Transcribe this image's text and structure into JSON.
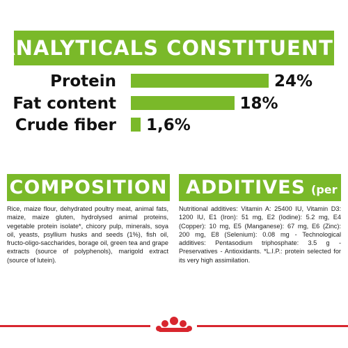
{
  "colors": {
    "accent": "#7ab929",
    "brand_red": "#d8262e",
    "text": "#111111"
  },
  "banner": {
    "title": "ANALYTICALS CONSTITUENTS"
  },
  "chart_data": {
    "type": "bar",
    "orientation": "horizontal",
    "categories": [
      "Protein",
      "Fat content",
      "Crude fiber"
    ],
    "values": [
      24,
      18,
      1.6
    ],
    "value_labels": [
      "24%",
      "18%",
      "1,6%"
    ],
    "unit": "%",
    "xlim": [
      0,
      24
    ],
    "grid": false,
    "legend": "none"
  },
  "composition": {
    "title": "COMPOSITION",
    "text": "Rice, maize flour, dehydrated poultry meat, animal fats, maize, maize gluten, hydrolysed animal proteins, vegetable protein isolate*, chicory pulp, minerals, soya oil, yeasts, psyllium husks and seeds (1%), fish oil, fructo-oligo-saccharides, borage oil, green tea and grape extracts (source of polyphenols), marigold extract (source of lutein)."
  },
  "additives": {
    "title": "ADDITIVES",
    "subtitle": "(per kg)",
    "text": "Nutritional additives: Vitamin A: 25400 IU, Vitamin D3: 1200 IU, E1 (Iron): 51 mg, E2 (Iodine): 5.2 mg, E4 (Copper): 10 mg, E5 (Manganese): 67 mg, E6 (Zinc): 200 mg, E8 (Selenium): 0.08 mg - Technological additives: Pentasodium triphosphate: 3.5 g - Preservatives - Antioxidants. *L.I.P.: protein selected for its very high assimilation."
  },
  "footer": {
    "logo_icon": "royal-canin-crown-icon"
  }
}
